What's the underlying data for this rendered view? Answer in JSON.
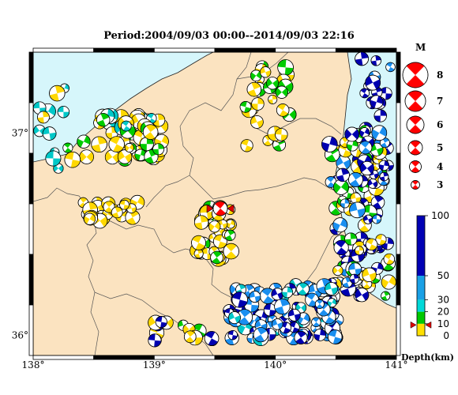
{
  "title": "Period:2004/09/03 00:00--2014/09/03 22:16",
  "map": {
    "lon_range": [
      138,
      141
    ],
    "lat_range": [
      35.9,
      37.4
    ],
    "x_ticks": [
      "138°",
      "139°",
      "140°",
      "141°"
    ],
    "y_ticks": [
      "36°",
      "37°"
    ],
    "colors": {
      "land": "#fbe3c0",
      "sea": "#d6f6fb",
      "border": "#000000"
    }
  },
  "magnitude_legend": {
    "title": "M",
    "entries": [
      "8",
      "7",
      "6",
      "5",
      "4",
      "3"
    ],
    "color": "#ff0000"
  },
  "depth_legend": {
    "title": "Depth(km)",
    "ticks": [
      "100",
      "50",
      "30",
      "20",
      "10",
      "0"
    ],
    "colors": [
      "#ffe000",
      "#00c800",
      "#00d8d8",
      "#19a0e6",
      "#0000b4"
    ]
  },
  "events": {
    "colors": {
      "shallow": "#ffd800",
      "mid": "#00cc00",
      "deeper": "#00c8c8",
      "deep": "#1a8ff0",
      "deepest": "#0000b0",
      "main": "#ff0000"
    }
  }
}
